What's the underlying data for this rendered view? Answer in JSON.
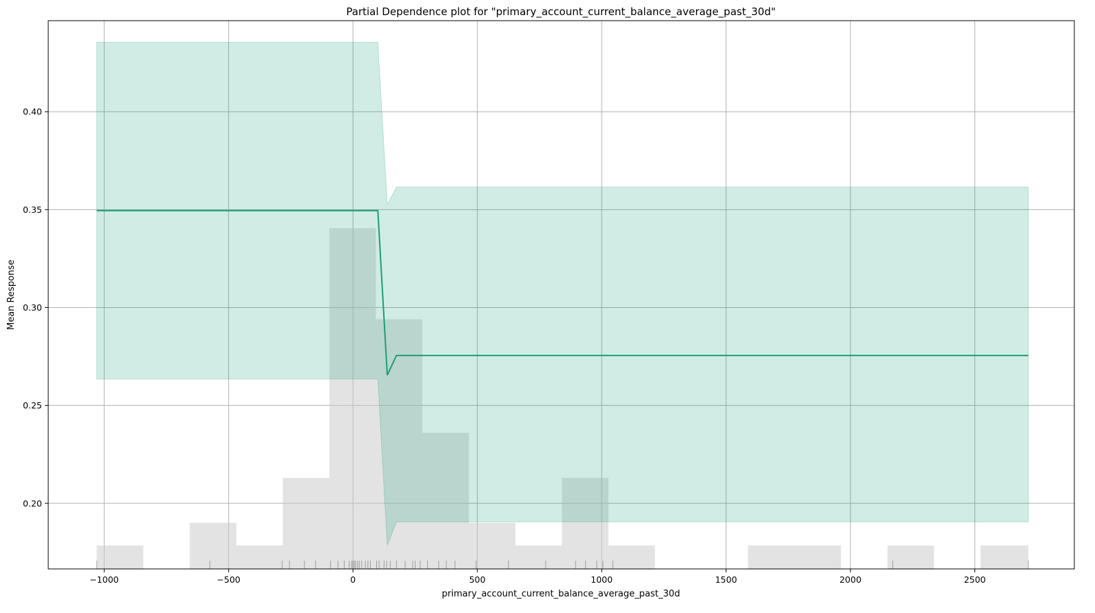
{
  "chart_data": {
    "type": "line",
    "title": "Partial Dependence plot for \"primary_account_current_balance_average_past_30d\"",
    "xlabel": "primary_account_current_balance_average_past_30d",
    "ylabel": "Mean Response",
    "xlim": [
      -1225,
      2900
    ],
    "ylim": [
      0.1665,
      0.4465
    ],
    "xticks": [
      -1000,
      -500,
      0,
      500,
      1000,
      1500,
      2000,
      2500
    ],
    "xtick_labels": [
      "−1000",
      "−500",
      "0",
      "500",
      "1000",
      "1500",
      "2000",
      "2500"
    ],
    "yticks": [
      0.2,
      0.25,
      0.3,
      0.35,
      0.4
    ],
    "ytick_labels": [
      "0.20",
      "0.25",
      "0.30",
      "0.35",
      "0.40"
    ],
    "grid": true,
    "colors": {
      "line": "#1b9e77",
      "band": "#1b9e77",
      "histogram": "#c8c8c8",
      "rug": "#555555",
      "grid": "#b0b0b0"
    },
    "series": [
      {
        "x": [
          -1030,
          100,
          138,
          175,
          2715
        ],
        "y": [
          0.3495,
          0.3495,
          0.2655,
          0.2755,
          0.2755
        ],
        "lower": [
          0.2635,
          0.2635,
          0.1785,
          0.1905,
          0.1905
        ],
        "upper": [
          0.4355,
          0.4355,
          0.3525,
          0.3615,
          0.3615
        ]
      }
    ],
    "histogram": {
      "bin_edges": [
        -1030,
        -843,
        -656,
        -469,
        -282,
        -95,
        92,
        279,
        466,
        653,
        840,
        1027,
        1214,
        1401,
        1588,
        1775,
        1962,
        2149,
        2336,
        2523,
        2715
      ],
      "heights": [
        0.1785,
        0.1665,
        0.19,
        0.1785,
        0.213,
        0.3405,
        0.294,
        0.236,
        0.19,
        0.1785,
        0.213,
        0.1785,
        0.1665,
        0.1665,
        0.1785,
        0.1785,
        0.1665,
        0.1785,
        0.1665,
        0.1785
      ]
    },
    "rug_x": [
      -1030,
      -575,
      -285,
      -255,
      -195,
      -150,
      -90,
      -60,
      -35,
      -15,
      -5,
      0,
      5,
      10,
      18,
      25,
      35,
      50,
      60,
      70,
      95,
      105,
      125,
      135,
      150,
      175,
      210,
      240,
      250,
      270,
      300,
      345,
      375,
      410,
      495,
      625,
      775,
      895,
      935,
      980,
      1005,
      1045,
      2170,
      2715
    ]
  }
}
